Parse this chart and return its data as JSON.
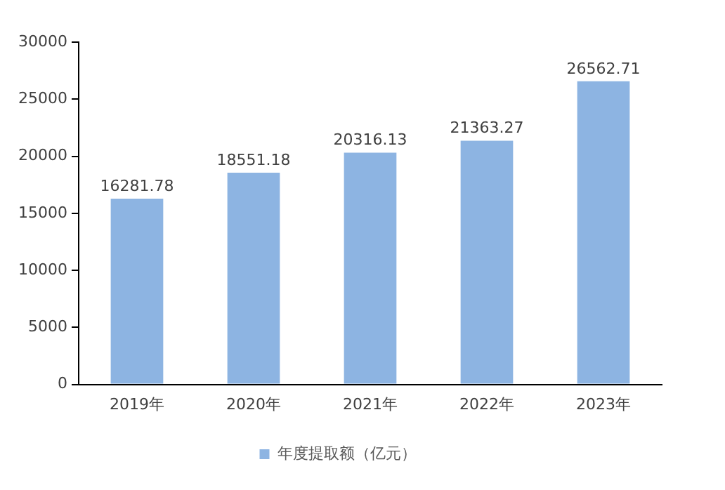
{
  "chart_data": {
    "type": "bar",
    "categories": [
      "2019年",
      "2020年",
      "2021年",
      "2022年",
      "2023年"
    ],
    "series": [
      {
        "name": "年度提取额（亿元）",
        "color": "#8db4e2",
        "values": [
          16281.78,
          18551.18,
          20316.13,
          21363.27,
          26562.71
        ]
      }
    ],
    "ylim": [
      0,
      30000
    ],
    "yticks": [
      0,
      5000,
      10000,
      15000,
      20000,
      25000,
      30000
    ],
    "grid": false,
    "legend": "bottom",
    "data_labels": true
  }
}
